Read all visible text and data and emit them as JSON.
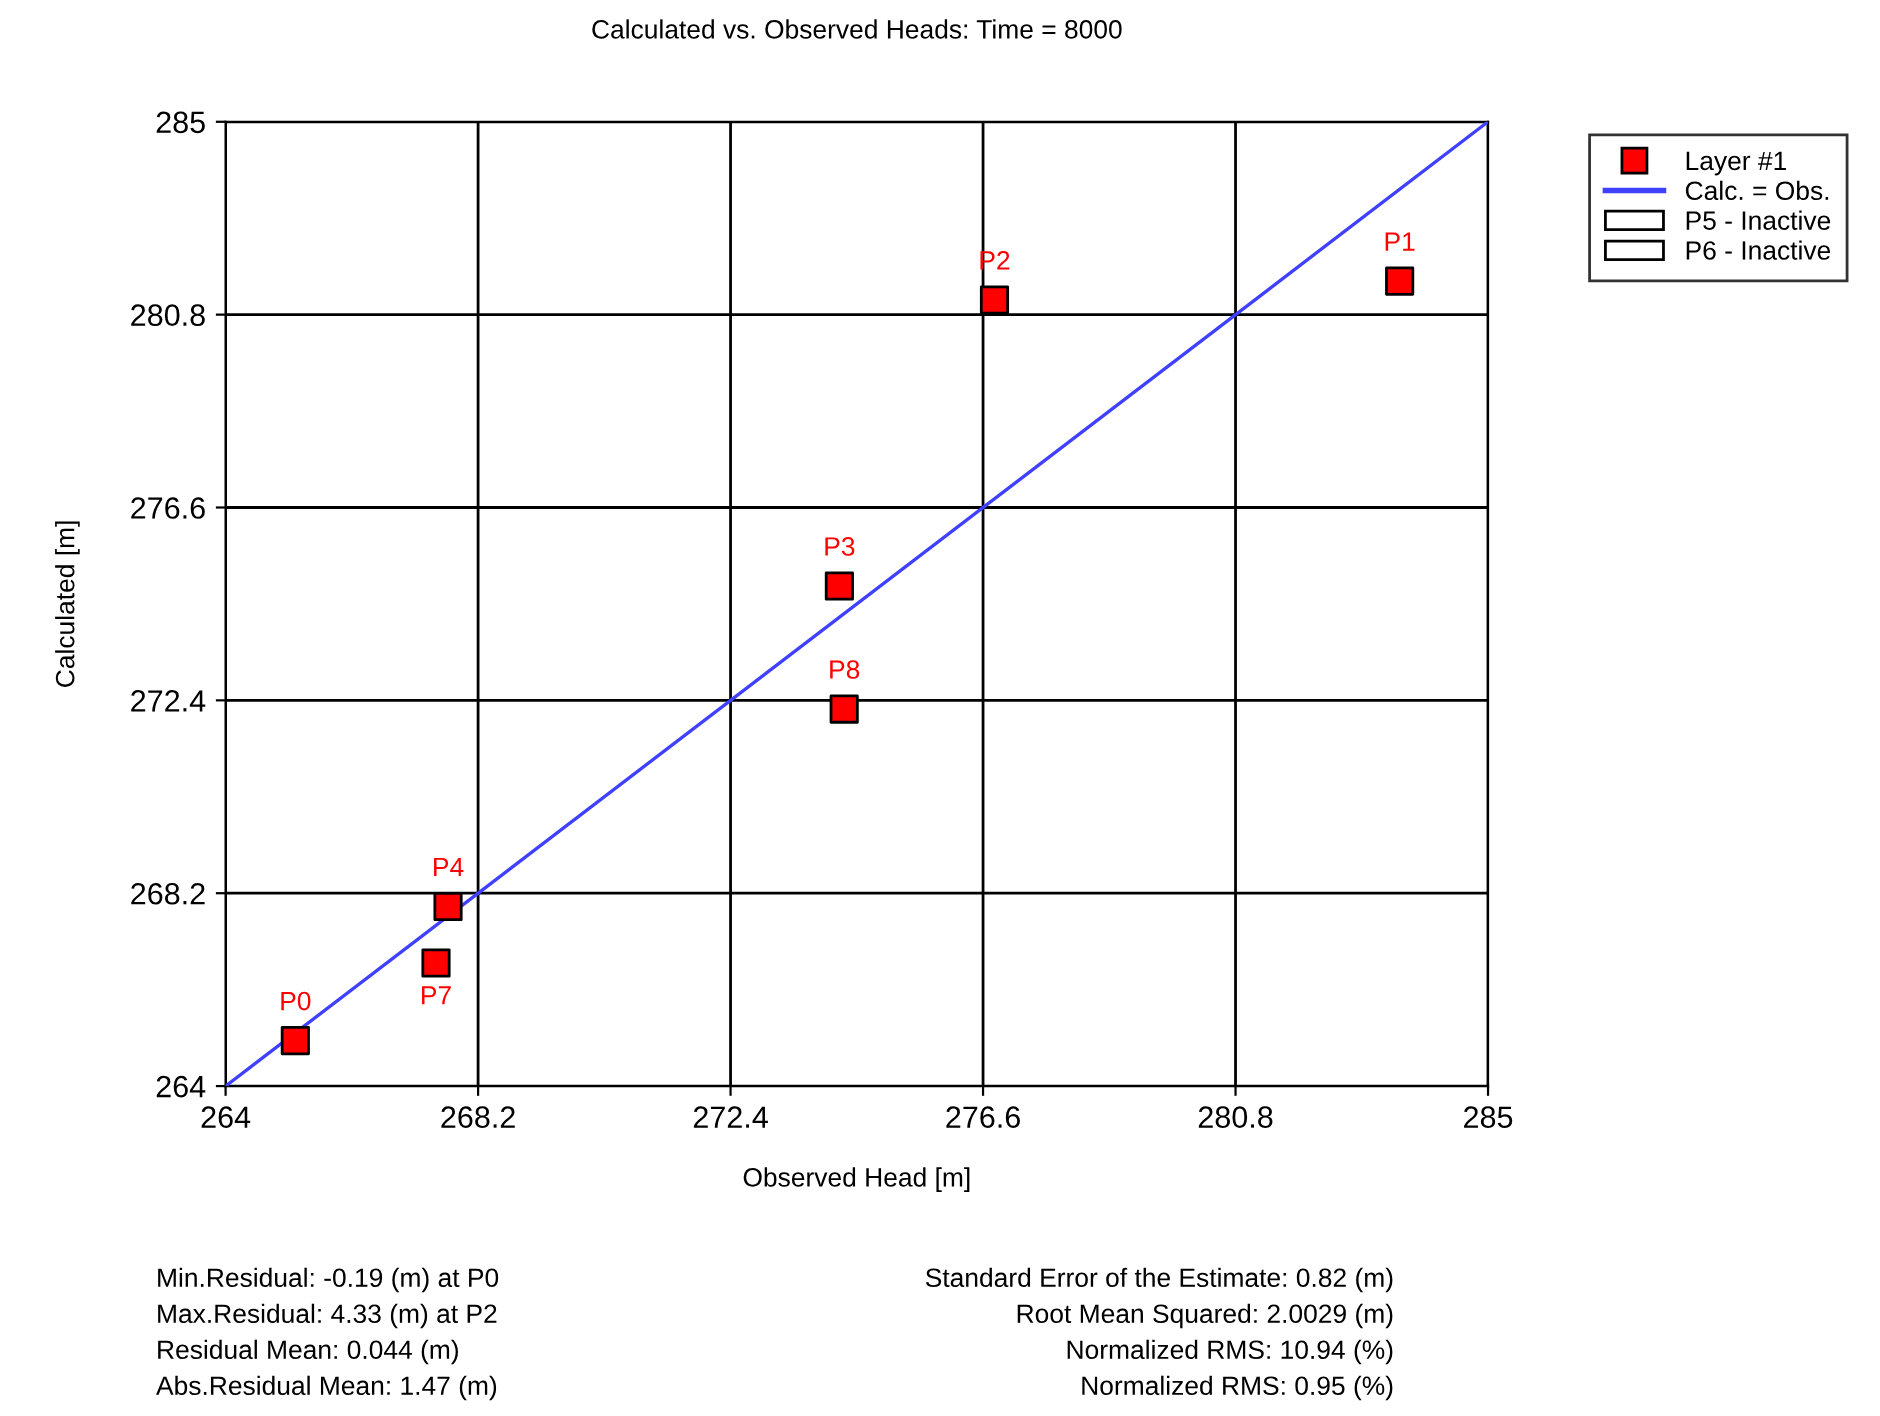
{
  "chart_data": {
    "type": "scatter",
    "title": "Calculated vs. Observed Heads: Time = 8000",
    "xlabel": "Observed Head [m]",
    "ylabel": "Calculated [m]",
    "series": [
      {
        "name": "Layer #1",
        "color": "#ff0000",
        "marker": "square",
        "x": [
          265.16,
          283.53,
          276.79,
          274.21,
          267.7,
          267.5,
          274.29
        ],
        "values": [
          264.99,
          281.53,
          281.12,
          274.89,
          267.91,
          266.68,
          272.21
        ]
      },
      {
        "name": "Calc. = Obs.",
        "type": "line",
        "color": "#4040ff",
        "x": [
          264,
          285
        ],
        "values": [
          264,
          285
        ]
      },
      {
        "name": "P5 - Inactive",
        "type": "bar",
        "color": "#ffffff"
      },
      {
        "name": "P6 - Inactive",
        "type": "bar",
        "color": "#ffffff"
      }
    ],
    "annotations": [
      {
        "text": "P0",
        "x": 265.16,
        "y": 264.99
      },
      {
        "text": "P1",
        "x": 283.53,
        "y": 281.53
      },
      {
        "text": "P2",
        "x": 276.79,
        "y": 281.12
      },
      {
        "text": "P3",
        "x": 274.21,
        "y": 274.89
      },
      {
        "text": "P4",
        "x": 267.7,
        "y": 267.91
      },
      {
        "text": "P7",
        "x": 267.5,
        "y": 266.68
      },
      {
        "text": "P8",
        "x": 274.29,
        "y": 272.21
      },
      "Min.Residual: -0.19 (m) at P0",
      "Max.Residual: 4.33 (m) at P2",
      "Residual Mean: 0.044 (m)",
      "Abs.Residual Mean: 1.47 (m)",
      "Standard Error of the Estimate: 0.82 (m)",
      "Root Mean Squared: 2.0029 (m)",
      "Normalized RMS: 10.94 (%)",
      "Normalized RMS: 0.95 (%)"
    ],
    "xlim": [
      264,
      285
    ],
    "ylim": [
      264,
      285
    ],
    "xticks": [
      264,
      268.2,
      272.4,
      276.6,
      280.8,
      285
    ],
    "yticks": [
      264,
      268.2,
      272.4,
      276.6,
      280.8,
      285
    ],
    "grid": true,
    "legend": "top right"
  }
}
